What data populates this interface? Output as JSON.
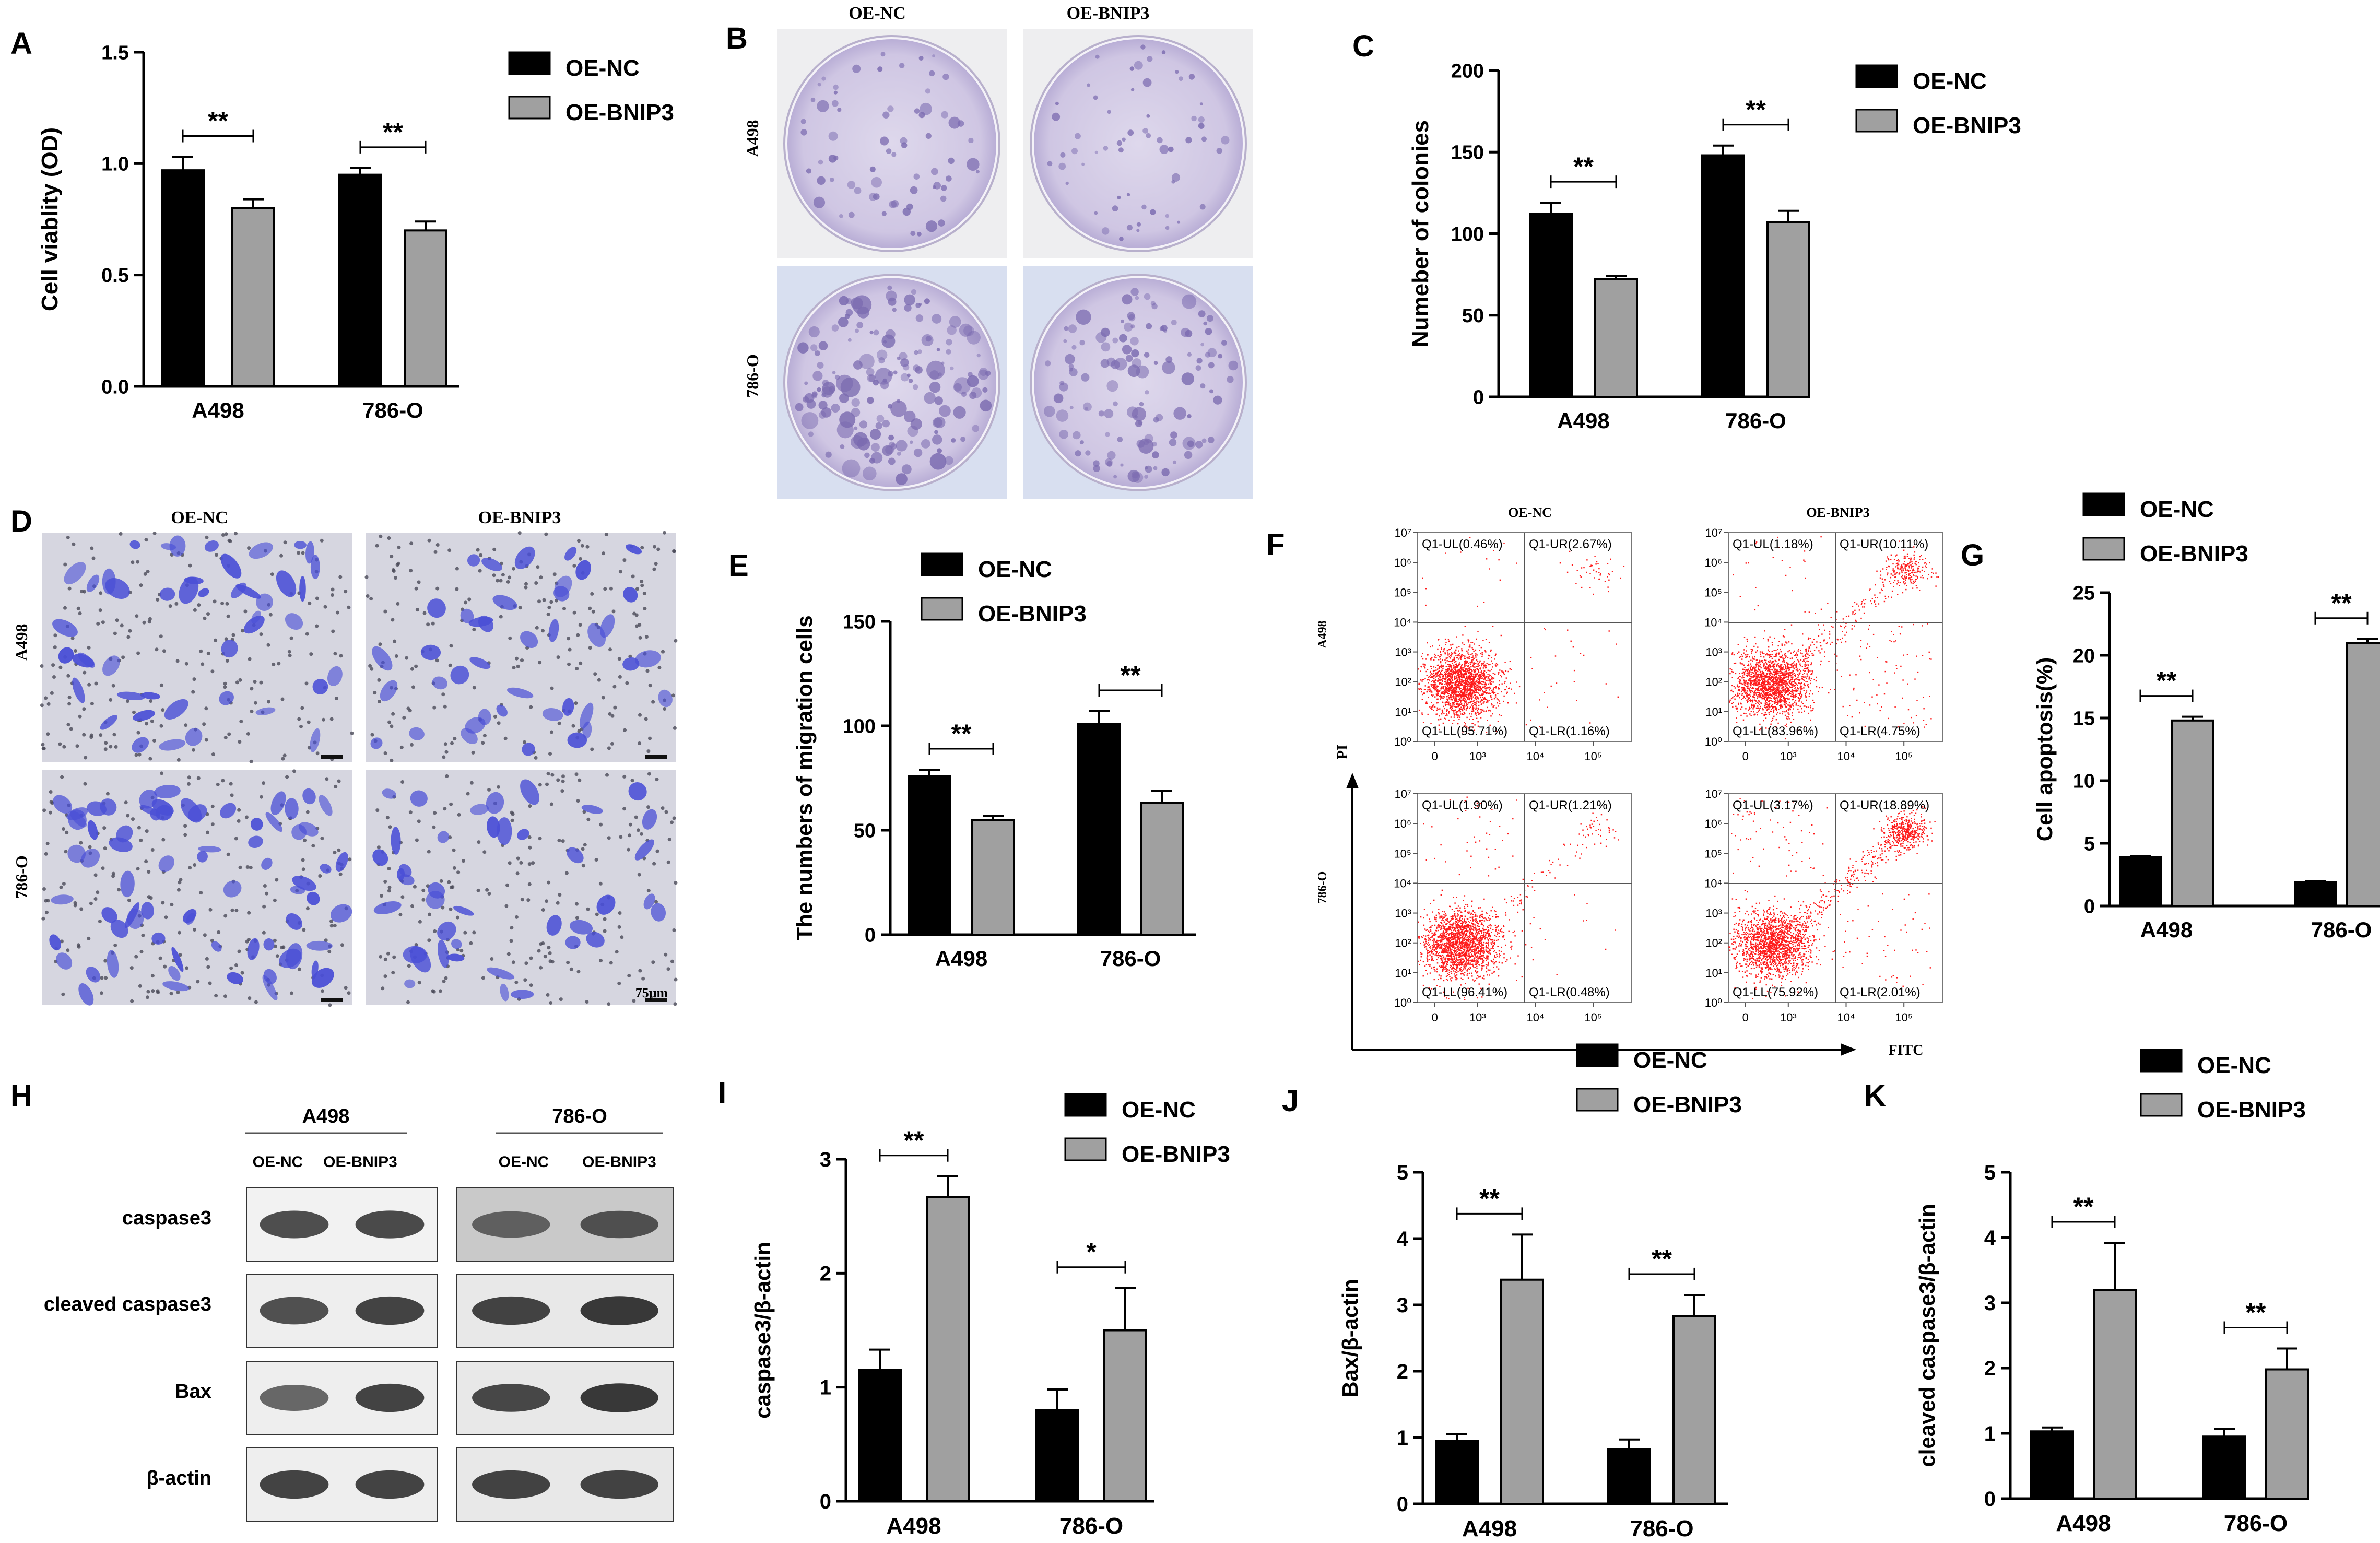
{
  "panels": {
    "A": "A",
    "B": "B",
    "C": "C",
    "D": "D",
    "E": "E",
    "F": "F",
    "G": "G",
    "H": "H",
    "I": "I",
    "J": "J",
    "K": "K"
  },
  "legend": {
    "nc": "OE-NC",
    "bnip3": "OE-BNIP3"
  },
  "colors": {
    "nc": "#000000",
    "bnip3": "#a0a0a0",
    "dish": "#7b6bb0",
    "transwell": "#4a4fd6",
    "facs_dot": "#ff1a1a"
  },
  "chart_data": [
    {
      "id": "A",
      "type": "bar",
      "categories": [
        "A498",
        "786-O"
      ],
      "ylabel": "Cell viablity (OD)",
      "xlabel": "",
      "ylim": [
        0,
        1.5
      ],
      "ticks": [
        "0.0",
        "0.5",
        "1.0",
        "1.5"
      ],
      "legend_position": "top-right",
      "series": [
        {
          "name": "OE-NC",
          "values": [
            0.97,
            0.95
          ],
          "errors": [
            0.06,
            0.03
          ]
        },
        {
          "name": "OE-BNIP3",
          "values": [
            0.8,
            0.7
          ],
          "errors": [
            0.04,
            0.04
          ]
        }
      ],
      "significance": [
        "**",
        "**"
      ]
    },
    {
      "id": "C",
      "type": "bar",
      "categories": [
        "A498",
        "786-O"
      ],
      "ylabel": "Numeber of colonies",
      "xlabel": "",
      "ylim": [
        0,
        200
      ],
      "ticks": [
        "0",
        "50",
        "100",
        "150",
        "200"
      ],
      "legend_position": "top-right",
      "series": [
        {
          "name": "OE-NC",
          "values": [
            112,
            148
          ],
          "errors": [
            7,
            6
          ]
        },
        {
          "name": "OE-BNIP3",
          "values": [
            72,
            107
          ],
          "errors": [
            2,
            7
          ]
        }
      ],
      "significance": [
        "**",
        "**"
      ]
    },
    {
      "id": "E",
      "type": "bar",
      "categories": [
        "A498",
        "786-O"
      ],
      "ylabel": "The numbers of migration cells",
      "xlabel": "",
      "ylim": [
        0,
        150
      ],
      "ticks": [
        "0",
        "50",
        "100",
        "150"
      ],
      "legend_position": "top-right",
      "series": [
        {
          "name": "OE-NC",
          "values": [
            76,
            101
          ],
          "errors": [
            3,
            6
          ]
        },
        {
          "name": "OE-BNIP3",
          "values": [
            55,
            63
          ],
          "errors": [
            2,
            6
          ]
        }
      ],
      "significance": [
        "**",
        "**"
      ]
    },
    {
      "id": "G",
      "type": "bar",
      "categories": [
        "A498",
        "786-O"
      ],
      "ylabel": "Cell apoptosis(%)",
      "xlabel": "",
      "ylim": [
        0,
        25
      ],
      "ticks": [
        "0",
        "5",
        "10",
        "15",
        "20",
        "25"
      ],
      "legend_position": "top",
      "series": [
        {
          "name": "OE-NC",
          "values": [
            3.9,
            1.9
          ],
          "errors": [
            0.1,
            0.1
          ]
        },
        {
          "name": "OE-BNIP3",
          "values": [
            14.8,
            21.0
          ],
          "errors": [
            0.3,
            0.3
          ]
        }
      ],
      "significance": [
        "**",
        "**"
      ]
    },
    {
      "id": "I",
      "type": "bar",
      "categories": [
        "A498",
        "786-O"
      ],
      "ylabel": "caspase3/β-actin",
      "xlabel": "",
      "ylim": [
        0,
        3
      ],
      "ticks": [
        "0",
        "1",
        "2",
        "3"
      ],
      "legend_position": "top-right",
      "series": [
        {
          "name": "OE-NC",
          "values": [
            1.15,
            0.8
          ],
          "errors": [
            0.18,
            0.18
          ]
        },
        {
          "name": "OE-BNIP3",
          "values": [
            2.67,
            1.5
          ],
          "errors": [
            0.18,
            0.37
          ]
        }
      ],
      "significance": [
        "**",
        "*"
      ]
    },
    {
      "id": "J",
      "type": "bar",
      "categories": [
        "A498",
        "786-O"
      ],
      "ylabel": "Bax/β-actin",
      "xlabel": "",
      "ylim": [
        0,
        5
      ],
      "ticks": [
        "0",
        "1",
        "2",
        "3",
        "4",
        "5"
      ],
      "legend_position": "top",
      "series": [
        {
          "name": "OE-NC",
          "values": [
            0.95,
            0.82
          ],
          "errors": [
            0.1,
            0.15
          ]
        },
        {
          "name": "OE-BNIP3",
          "values": [
            3.38,
            2.83
          ],
          "errors": [
            0.68,
            0.32
          ]
        }
      ],
      "significance": [
        "**",
        "**"
      ]
    },
    {
      "id": "K",
      "type": "bar",
      "categories": [
        "A498",
        "786-O"
      ],
      "ylabel": "cleaved caspase3/β-actin",
      "xlabel": "",
      "ylim": [
        0,
        5
      ],
      "ticks": [
        "0",
        "1",
        "2",
        "3",
        "4",
        "5"
      ],
      "legend_position": "top",
      "series": [
        {
          "name": "OE-NC",
          "values": [
            1.03,
            0.95
          ],
          "errors": [
            0.06,
            0.12
          ]
        },
        {
          "name": "OE-BNIP3",
          "values": [
            3.2,
            1.98
          ],
          "errors": [
            0.72,
            0.32
          ]
        }
      ],
      "significance": [
        "**",
        "**"
      ]
    }
  ],
  "colony": {
    "col_labels": [
      "OE-NC",
      "OE-BNIP3"
    ],
    "row_labels": [
      "A498",
      "786-O"
    ]
  },
  "transwell": {
    "col_labels": [
      "OE-NC",
      "OE-BNIP3"
    ],
    "row_labels": [
      "A498",
      "786-O"
    ],
    "scale_bar": "75μm"
  },
  "facs": {
    "col_labels": [
      "OE-NC",
      "OE-BNIP3"
    ],
    "row_labels": [
      "A498",
      "786-O"
    ],
    "y_axis_label": "PI",
    "x_axis_label": "FITC",
    "plots": [
      {
        "ul": "Q1-UL(0.46%)",
        "ur": "Q1-UR(2.67%)",
        "ll": "Q1-LL(95.71%)",
        "lr": "Q1-LR(1.16%)"
      },
      {
        "ul": "Q1-UL(1.18%)",
        "ur": "Q1-UR(10.11%)",
        "ll": "Q1-LL(83.96%)",
        "lr": "Q1-LR(4.75%)"
      },
      {
        "ul": "Q1-UL(1.90%)",
        "ur": "Q1-UR(1.21%)",
        "ll": "Q1-LL(96.41%)",
        "lr": "Q1-LR(0.48%)"
      },
      {
        "ul": "Q1-UL(3.17%)",
        "ur": "Q1-UR(18.89%)",
        "ll": "Q1-LL(75.92%)",
        "lr": "Q1-LR(2.01%)"
      }
    ],
    "y_ticks": [
      "10⁰",
      "10¹",
      "10²",
      "10³",
      "10⁴",
      "10⁵",
      "10⁶",
      "10⁷"
    ],
    "x_ticks": [
      "0",
      "10³",
      "10⁴",
      "10⁵"
    ]
  },
  "western": {
    "groups": [
      "A498",
      "786-O"
    ],
    "lanes": [
      "OE-NC",
      "OE-BNIP3"
    ],
    "proteins": [
      "caspase3",
      "cleaved caspase3",
      "Bax",
      "β-actin"
    ]
  }
}
